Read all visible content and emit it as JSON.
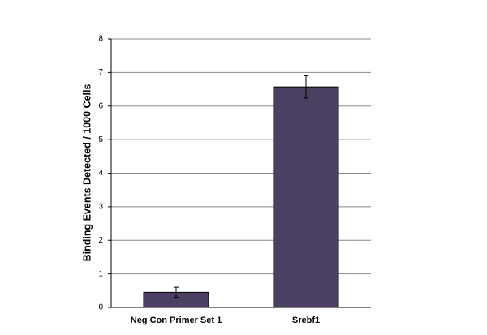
{
  "chart_data": {
    "type": "bar",
    "y_label": "Binding Events Detected / 1000 Cells",
    "categories": [
      "Neg Con Primer Set 1",
      "Srebf1"
    ],
    "values": [
      0.45,
      6.57
    ],
    "errors": [
      0.15,
      0.33
    ],
    "color": "#4b3f62",
    "ylim": [
      0,
      8
    ],
    "yticks": [
      0,
      1,
      2,
      3,
      4,
      5,
      6,
      7,
      8
    ],
    "grid": true
  }
}
